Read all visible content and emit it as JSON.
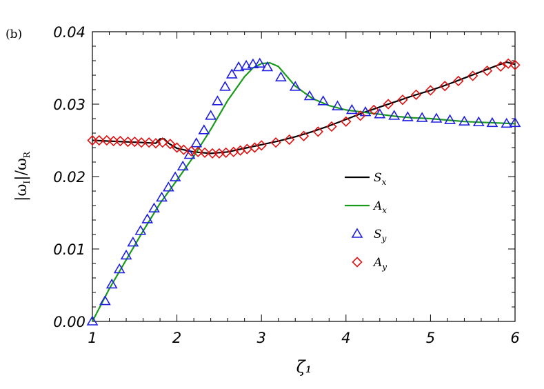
{
  "chart_data": {
    "type": "line",
    "panel_label": "(b)",
    "xlabel": "ζ₁",
    "ylabel": "|ω_I|/ω_R",
    "xlim": [
      1,
      6
    ],
    "ylim": [
      0,
      0.04
    ],
    "xticks": [
      1,
      2,
      3,
      4,
      5,
      6
    ],
    "xtick_labels": [
      "1",
      "2",
      "3",
      "4",
      "5",
      "6"
    ],
    "yticks": [
      0,
      0.01,
      0.02,
      0.03,
      0.04
    ],
    "ytick_labels": [
      "0.00",
      "0.01",
      "0.02",
      "0.03",
      "0.04"
    ],
    "grid": false,
    "legend_position": "right",
    "series": [
      {
        "name": "S_x",
        "style": "line",
        "color": "#000000",
        "x": [
          1.0,
          1.2,
          1.4,
          1.6,
          1.75,
          1.8,
          1.85,
          1.9,
          2.0,
          2.2,
          2.4,
          2.6,
          2.8,
          3.0,
          3.2,
          3.4,
          3.6,
          3.8,
          4.0,
          4.2,
          4.4,
          4.6,
          4.8,
          5.0,
          5.2,
          5.4,
          5.6,
          5.8,
          5.9,
          6.0
        ],
        "y": [
          0.025,
          0.0249,
          0.0248,
          0.0247,
          0.0246,
          0.0252,
          0.0252,
          0.0246,
          0.0239,
          0.0234,
          0.0232,
          0.0234,
          0.0239,
          0.0244,
          0.0249,
          0.0255,
          0.0262,
          0.027,
          0.0279,
          0.0288,
          0.0296,
          0.0304,
          0.0312,
          0.0319,
          0.0327,
          0.0336,
          0.0345,
          0.0354,
          0.0358,
          0.0355
        ]
      },
      {
        "name": "A_x",
        "style": "line",
        "color": "#1a9a1a",
        "x": [
          1.0,
          1.2,
          1.4,
          1.6,
          1.8,
          2.0,
          2.2,
          2.4,
          2.6,
          2.8,
          2.9,
          3.0,
          3.1,
          3.2,
          3.4,
          3.6,
          3.8,
          4.0,
          4.2,
          4.4,
          4.6,
          4.8,
          5.0,
          5.2,
          5.4,
          5.6,
          5.8,
          6.0
        ],
        "y": [
          0.0,
          0.0045,
          0.0085,
          0.0125,
          0.0163,
          0.0195,
          0.0228,
          0.0265,
          0.0305,
          0.0338,
          0.035,
          0.0356,
          0.0357,
          0.0352,
          0.0325,
          0.0308,
          0.0298,
          0.0292,
          0.0289,
          0.0286,
          0.0283,
          0.0281,
          0.028,
          0.0278,
          0.0276,
          0.0275,
          0.0274,
          0.0273
        ]
      },
      {
        "name": "S_y",
        "style": "markers",
        "marker": "triangle",
        "color": "#1f1fe0",
        "x": [
          1.0,
          1.15,
          1.23,
          1.32,
          1.4,
          1.48,
          1.57,
          1.65,
          1.73,
          1.82,
          1.9,
          1.98,
          2.07,
          2.15,
          2.23,
          2.32,
          2.4,
          2.48,
          2.57,
          2.65,
          2.73,
          2.82,
          2.9,
          2.98,
          3.07,
          3.23,
          3.4,
          3.57,
          3.73,
          3.9,
          4.07,
          4.23,
          4.4,
          4.57,
          4.73,
          4.9,
          5.07,
          5.23,
          5.4,
          5.57,
          5.73,
          5.9,
          6.0
        ],
        "y": [
          0.0,
          0.0028,
          0.0051,
          0.0072,
          0.0091,
          0.0109,
          0.0125,
          0.0141,
          0.0156,
          0.0171,
          0.0185,
          0.0199,
          0.0214,
          0.023,
          0.0246,
          0.0264,
          0.0284,
          0.0304,
          0.0324,
          0.0341,
          0.0351,
          0.0353,
          0.0355,
          0.0356,
          0.0351,
          0.0337,
          0.0324,
          0.0311,
          0.0304,
          0.0297,
          0.0292,
          0.0289,
          0.0286,
          0.0284,
          0.0282,
          0.0281,
          0.028,
          0.0278,
          0.0276,
          0.0275,
          0.0274,
          0.0273,
          0.0274
        ]
      },
      {
        "name": "A_y",
        "style": "markers",
        "marker": "diamond",
        "color": "#e01010",
        "x": [
          1.0,
          1.08,
          1.17,
          1.25,
          1.33,
          1.42,
          1.5,
          1.58,
          1.67,
          1.75,
          1.83,
          1.92,
          2.0,
          2.08,
          2.17,
          2.25,
          2.33,
          2.42,
          2.5,
          2.58,
          2.67,
          2.75,
          2.83,
          2.92,
          3.0,
          3.17,
          3.33,
          3.5,
          3.67,
          3.83,
          4.0,
          4.17,
          4.33,
          4.5,
          4.67,
          4.83,
          5.0,
          5.17,
          5.33,
          5.5,
          5.67,
          5.83,
          5.92,
          6.0
        ],
        "y": [
          0.025,
          0.025,
          0.025,
          0.0249,
          0.0249,
          0.0248,
          0.0248,
          0.0247,
          0.0247,
          0.0246,
          0.0247,
          0.0245,
          0.024,
          0.0237,
          0.0235,
          0.0234,
          0.0233,
          0.0232,
          0.0232,
          0.0233,
          0.0234,
          0.0236,
          0.0238,
          0.024,
          0.0243,
          0.0247,
          0.0251,
          0.0256,
          0.0262,
          0.0269,
          0.0276,
          0.0284,
          0.0292,
          0.03,
          0.0306,
          0.0313,
          0.0319,
          0.0325,
          0.0332,
          0.0339,
          0.0346,
          0.0352,
          0.0356,
          0.0354
        ]
      }
    ],
    "legend": [
      {
        "label": "S",
        "sub": "x",
        "kind": "line",
        "color": "#000000"
      },
      {
        "label": "A",
        "sub": "x",
        "kind": "line",
        "color": "#1a9a1a"
      },
      {
        "label": "S",
        "sub": "y",
        "kind": "triangle",
        "color": "#1f1fe0"
      },
      {
        "label": "A",
        "sub": "y",
        "kind": "diamond",
        "color": "#e01010"
      }
    ]
  }
}
